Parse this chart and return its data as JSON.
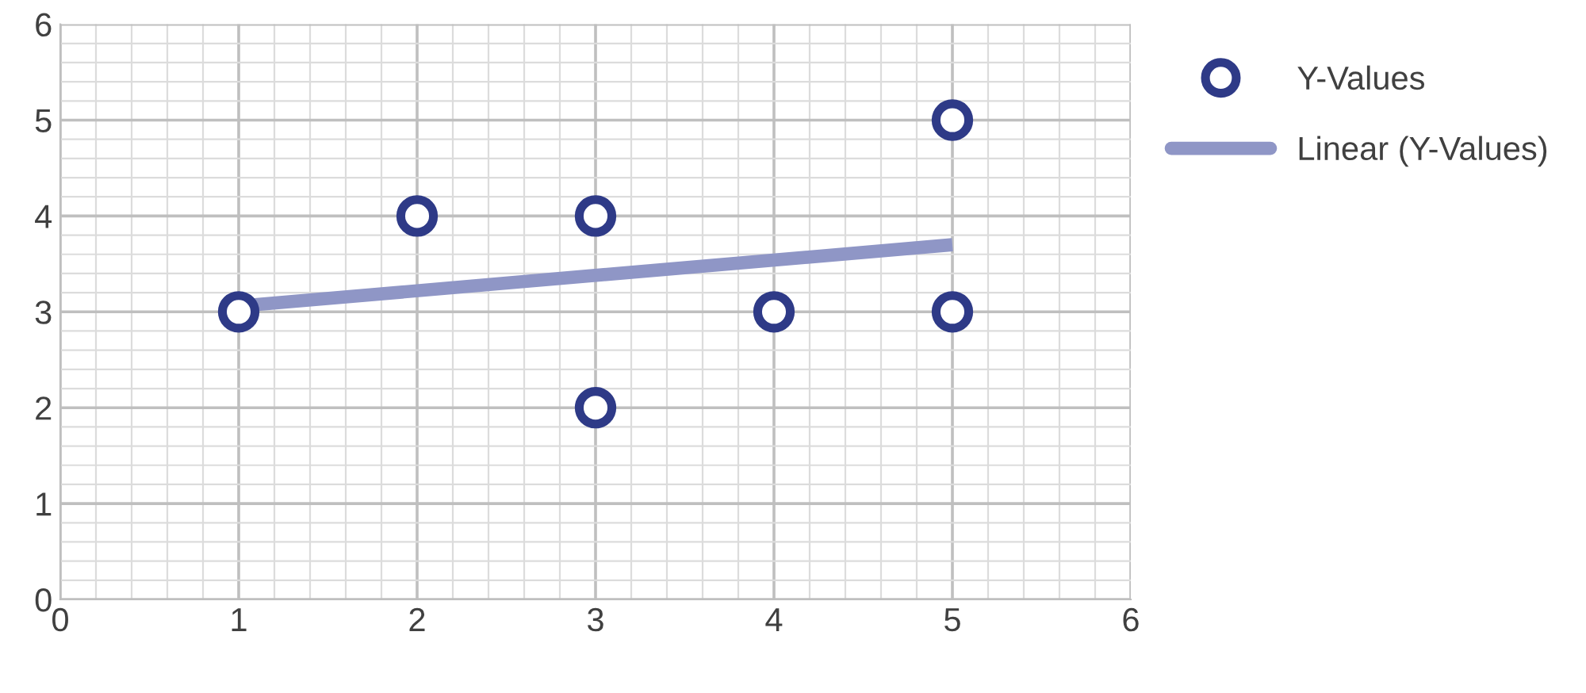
{
  "chart_data": {
    "type": "scatter",
    "xlim": [
      0,
      6
    ],
    "ylim": [
      0,
      6
    ],
    "xticks": [
      0,
      1,
      2,
      3,
      4,
      5,
      6
    ],
    "yticks": [
      0,
      1,
      2,
      3,
      4,
      5,
      6
    ],
    "grid": true,
    "legend": "right",
    "series": [
      {
        "name": "Y-Values",
        "marker": "circle",
        "color": "#2e3a87",
        "x": [
          1,
          2,
          3,
          3,
          4,
          5,
          5
        ],
        "values": [
          3,
          4,
          4,
          2,
          3,
          5,
          3
        ]
      },
      {
        "name": "Linear (Y-Values)",
        "type": "line",
        "color": "#8f96c6",
        "x": [
          1,
          5
        ],
        "values": [
          3.06,
          3.7
        ]
      }
    ]
  }
}
